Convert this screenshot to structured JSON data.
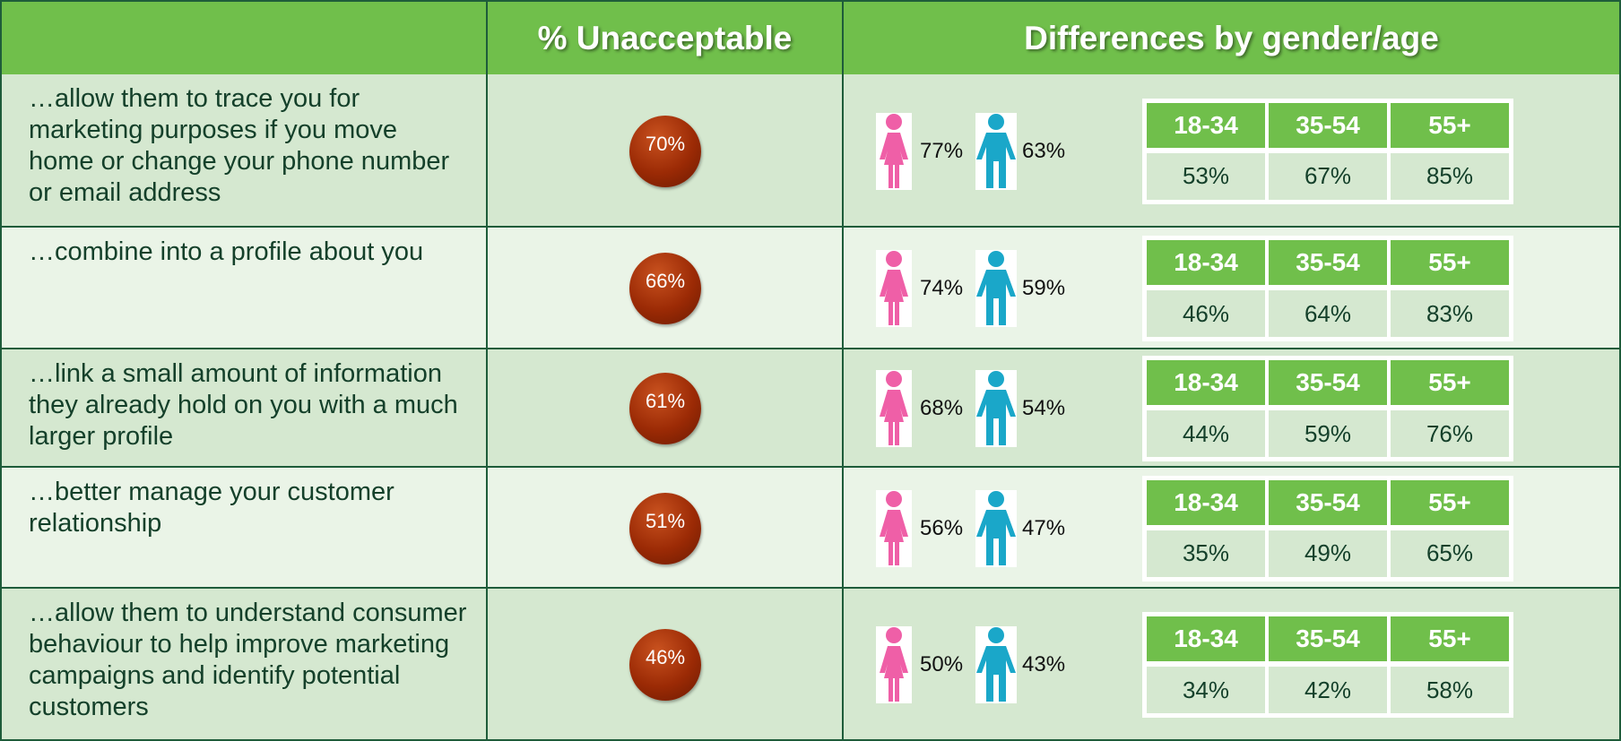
{
  "table": {
    "headers": [
      "% Unacceptable",
      "Differences by gender/age"
    ],
    "age_groups": [
      "18-34",
      "35-54",
      "55+"
    ],
    "rows": [
      {
        "label": "…allow them to trace you for marketing purposes if you move home or change your phone number or email address",
        "unacceptable": "70%",
        "female": "77%",
        "male": "63%",
        "ages": [
          "53%",
          "67%",
          "85%"
        ]
      },
      {
        "label": "…combine into a profile about you",
        "unacceptable": "66%",
        "female": "74%",
        "male": "59%",
        "ages": [
          "46%",
          "64%",
          "83%"
        ]
      },
      {
        "label": "…link a small amount of information they already hold on you with a much larger profile",
        "unacceptable": "61%",
        "female": "68%",
        "male": "54%",
        "ages": [
          "44%",
          "59%",
          "76%"
        ]
      },
      {
        "label": "…better manage your customer relationship",
        "unacceptable": "51%",
        "female": "56%",
        "male": "47%",
        "ages": [
          "35%",
          "49%",
          "65%"
        ]
      },
      {
        "label": "…allow them to understand consumer behaviour to help improve marketing campaigns and identify potential customers",
        "unacceptable": "46%",
        "female": "50%",
        "male": "43%",
        "ages": [
          "34%",
          "42%",
          "58%"
        ]
      }
    ]
  }
}
